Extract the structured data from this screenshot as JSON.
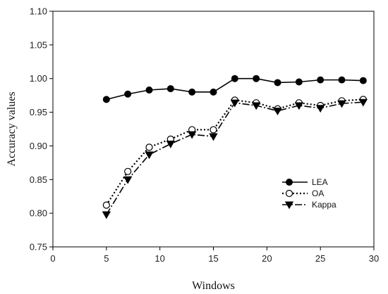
{
  "chart_data": {
    "type": "line",
    "title": "",
    "xlabel": "Windows",
    "ylabel": "Accuracy values",
    "xlim": [
      0,
      30
    ],
    "ylim": [
      0.75,
      1.1
    ],
    "xticks": [
      "0",
      "5",
      "10",
      "15",
      "20",
      "25",
      "30"
    ],
    "yticks": [
      "0.75",
      "0.80",
      "0.85",
      "0.90",
      "0.95",
      "1.00",
      "1.05",
      "1.10"
    ],
    "grid": false,
    "legend_position": "right-middle",
    "series": [
      {
        "name": "LEA",
        "marker": "filled-circle",
        "line_style": "solid",
        "x": [
          5,
          7,
          9,
          11,
          13,
          15,
          17,
          19,
          21,
          23,
          25,
          27,
          29
        ],
        "y": [
          0.969,
          0.977,
          0.983,
          0.985,
          0.98,
          0.98,
          1.0,
          1.0,
          0.994,
          0.995,
          0.998,
          0.998,
          0.997
        ]
      },
      {
        "name": "OA",
        "marker": "open-circle",
        "line_style": "dotted",
        "x": [
          5,
          7,
          9,
          11,
          13,
          15,
          17,
          19,
          21,
          23,
          25,
          27,
          29
        ],
        "y": [
          0.812,
          0.862,
          0.898,
          0.91,
          0.924,
          0.924,
          0.968,
          0.964,
          0.955,
          0.964,
          0.96,
          0.967,
          0.969
        ]
      },
      {
        "name": "Kappa",
        "marker": "filled-triangle-down",
        "line_style": "dash-dot",
        "x": [
          5,
          7,
          9,
          11,
          13,
          15,
          17,
          19,
          21,
          23,
          25,
          27,
          29
        ],
        "y": [
          0.798,
          0.85,
          0.887,
          0.903,
          0.917,
          0.914,
          0.964,
          0.96,
          0.952,
          0.96,
          0.956,
          0.963,
          0.965
        ]
      }
    ]
  }
}
